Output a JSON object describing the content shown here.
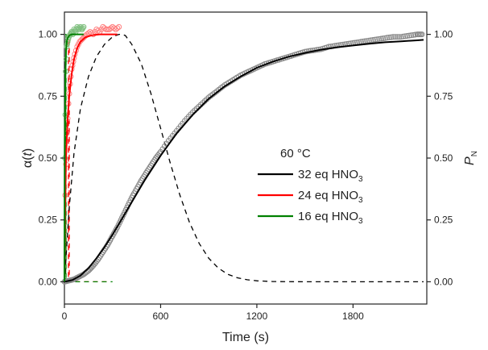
{
  "chart_data": {
    "type": "scatter",
    "xlabel": "Time (s)",
    "ylabel_left": {
      "text": "α(",
      "italic": "t",
      "close": ")"
    },
    "ylabel_right": {
      "main": "P",
      "sub": "N"
    },
    "xlim": [
      0,
      2260
    ],
    "ylim": [
      -0.09,
      1.09
    ],
    "x_ticks": [
      "0",
      "600",
      "1200",
      "1800"
    ],
    "x_tick_values": [
      0,
      600,
      1200,
      1800
    ],
    "y_ticks": [
      "0.00",
      "0.25",
      "0.50",
      "0.75",
      "1.00"
    ],
    "y_tick_values": [
      0,
      0.25,
      0.5,
      0.75,
      1.0
    ],
    "y2_ticks": [
      "0.00",
      "0.25",
      "0.50",
      "0.75",
      "1.00"
    ],
    "legend": {
      "title": "60 °C",
      "placement": "center-right",
      "entries": [
        {
          "label": "32 eq HNO",
          "sub": "3",
          "color": "#000000"
        },
        {
          "label": "24 eq HNO",
          "sub": "3",
          "color": "#ff0000"
        },
        {
          "label": "16 eq HNO",
          "sub": "3",
          "color": "#008000"
        }
      ]
    },
    "series": [
      {
        "name": "32 eq HNO3",
        "color": "#000000",
        "marker_color": "#888888",
        "fit": {
          "x": [
            0,
            50,
            100,
            150,
            200,
            250,
            300,
            350,
            400,
            450,
            500,
            600,
            700,
            800,
            900,
            1000,
            1100,
            1200,
            1300,
            1400,
            1500,
            1600,
            1700,
            1800,
            1900,
            2000,
            2100,
            2200,
            2240
          ],
          "y": [
            0,
            0.007,
            0.025,
            0.055,
            0.095,
            0.14,
            0.19,
            0.245,
            0.3,
            0.355,
            0.41,
            0.51,
            0.6,
            0.675,
            0.74,
            0.79,
            0.83,
            0.865,
            0.89,
            0.91,
            0.925,
            0.938,
            0.948,
            0.955,
            0.962,
            0.968,
            0.972,
            0.976,
            0.978
          ]
        },
        "points": {
          "x": [
            0,
            30,
            60,
            90,
            120,
            150,
            180,
            210,
            240,
            270,
            300,
            330,
            360,
            390,
            420,
            450,
            480,
            510,
            540,
            570,
            600,
            650,
            700,
            750,
            800,
            850,
            900,
            950,
            1000,
            1050,
            1100,
            1150,
            1200,
            1250,
            1300,
            1350,
            1400,
            1450,
            1500,
            1550,
            1600,
            1650,
            1700,
            1750,
            1800,
            1850,
            1900,
            1950,
            2000,
            2050,
            2100,
            2150,
            2200,
            2230
          ],
          "y": [
            0,
            0.005,
            0.01,
            0.02,
            0.03,
            0.045,
            0.065,
            0.09,
            0.12,
            0.15,
            0.185,
            0.22,
            0.26,
            0.3,
            0.34,
            0.375,
            0.41,
            0.44,
            0.47,
            0.5,
            0.525,
            0.57,
            0.61,
            0.65,
            0.685,
            0.715,
            0.745,
            0.77,
            0.795,
            0.815,
            0.835,
            0.85,
            0.865,
            0.88,
            0.89,
            0.9,
            0.91,
            0.92,
            0.93,
            0.935,
            0.94,
            0.95,
            0.955,
            0.96,
            0.965,
            0.97,
            0.975,
            0.98,
            0.985,
            0.99,
            0.99,
            0.995,
            1.0,
            1.0
          ]
        }
      },
      {
        "name": "24 eq HNO3",
        "color": "#ff0000",
        "marker_color": "#ff8080",
        "fit": {
          "x": [
            0,
            3,
            10,
            20,
            30,
            45,
            60,
            80,
            100,
            130,
            170,
            220,
            280,
            330
          ],
          "y": [
            0,
            0.25,
            0.5,
            0.66,
            0.75,
            0.84,
            0.9,
            0.945,
            0.97,
            0.988,
            0.996,
            1.0,
            1.0,
            1.0
          ]
        },
        "points": {
          "x": [
            5,
            15,
            25,
            35,
            45,
            55,
            65,
            80,
            95,
            110,
            125,
            140,
            160,
            180,
            200,
            220,
            240,
            260,
            280,
            300,
            320,
            340
          ],
          "y": [
            0.35,
            0.6,
            0.72,
            0.8,
            0.86,
            0.89,
            0.92,
            0.95,
            0.97,
            0.98,
            0.99,
            1.0,
            1.01,
            1.0,
            1.02,
            1.01,
            1.03,
            1.02,
            1.02,
            1.03,
            1.02,
            1.03
          ]
        },
        "pn": {
          "x": [
            0,
            25,
            25,
            30,
            30,
            270
          ],
          "y": [
            0,
            0,
            1,
            1,
            0,
            0
          ]
        }
      },
      {
        "name": "16 eq HNO3",
        "color": "#008000",
        "marker_color": "#7fbf7f",
        "fit": {
          "x": [
            0,
            2,
            5,
            10,
            15,
            20,
            30,
            45,
            60,
            80,
            120
          ],
          "y": [
            0,
            0.55,
            0.82,
            0.93,
            0.97,
            0.985,
            0.995,
            1.0,
            1.0,
            1.0,
            1.0
          ]
        },
        "points": {
          "x": [
            3,
            8,
            14,
            20,
            28,
            36,
            44,
            52,
            60,
            70,
            80,
            90,
            100,
            110,
            120
          ],
          "y": [
            0.5,
            0.85,
            0.95,
            0.97,
            0.99,
            1.0,
            1.01,
            1.0,
            1.02,
            1.01,
            1.03,
            1.02,
            1.03,
            1.02,
            1.03
          ]
        },
        "pn": {
          "x": [
            0,
            8,
            8,
            10,
            10,
            300
          ],
          "y": [
            0,
            0,
            1,
            1,
            0,
            0
          ]
        }
      },
      {
        "name": "32 eq HNO3 P_N",
        "color": "#000000",
        "dashed": true,
        "pn": {
          "x": [
            0,
            30,
            60,
            100,
            150,
            200,
            250,
            300,
            340,
            360,
            380,
            420,
            480,
            540,
            600,
            660,
            720,
            780,
            840,
            900,
            960,
            1020,
            1080,
            1140,
            1200,
            1300,
            1500,
            1800,
            2100,
            2240
          ],
          "y": [
            0,
            0.3,
            0.52,
            0.7,
            0.83,
            0.91,
            0.96,
            0.99,
            1.0,
            1.0,
            0.995,
            0.96,
            0.88,
            0.76,
            0.62,
            0.48,
            0.35,
            0.24,
            0.155,
            0.095,
            0.055,
            0.03,
            0.016,
            0.008,
            0.004,
            0.001,
            0,
            0,
            0,
            0
          ]
        }
      }
    ]
  }
}
